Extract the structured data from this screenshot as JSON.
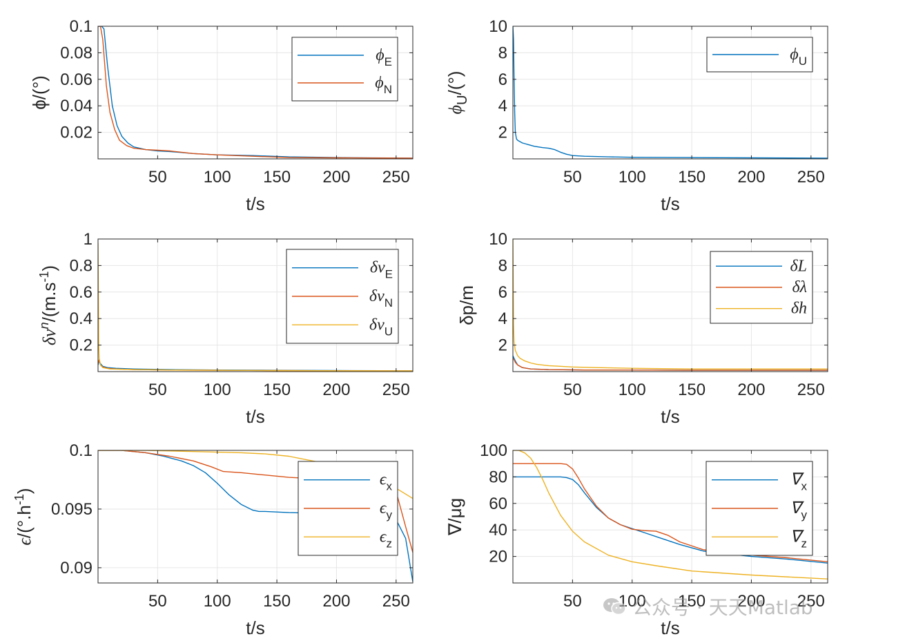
{
  "watermark": {
    "text": "公众号 · 天天Matlab",
    "icon": "wechat-icon"
  },
  "colors": {
    "blue": "#0072BD",
    "orange": "#D95319",
    "yellow": "#EDB120",
    "grid": "#e6e6e6",
    "axis": "#262626"
  },
  "chart_data": [
    {
      "id": "phi-en",
      "type": "line",
      "xlabel": "t/s",
      "ylabel": "ϕ/(°)",
      "xlim": [
        0,
        264
      ],
      "ylim": [
        0,
        0.1
      ],
      "xticks": [
        50,
        100,
        150,
        200,
        250
      ],
      "xtick_labels": [
        "50",
        "100",
        "150",
        "200",
        "250"
      ],
      "yticks": [
        0.02,
        0.04,
        0.06,
        0.08,
        0.1
      ],
      "ytick_labels": [
        "0.02",
        "0.04",
        "0.06",
        "0.08",
        "0.1"
      ],
      "legend_position": "top-right",
      "series": [
        {
          "name": "ϕE",
          "symbol": "ϕ",
          "sub": "E",
          "color": "blue",
          "x": [
            0,
            3,
            5,
            8,
            12,
            16,
            20,
            25,
            30,
            40,
            50,
            60,
            80,
            100,
            130,
            160,
            200,
            264
          ],
          "y": [
            0.1,
            0.1,
            0.098,
            0.07,
            0.04,
            0.025,
            0.017,
            0.012,
            0.009,
            0.007,
            0.006,
            0.0055,
            0.004,
            0.003,
            0.0025,
            0.0015,
            0.001,
            0.0005
          ]
        },
        {
          "name": "ϕN",
          "symbol": "ϕ",
          "sub": "N",
          "color": "orange",
          "x": [
            0,
            2,
            4,
            7,
            10,
            14,
            18,
            24,
            30,
            40,
            50,
            60,
            80,
            100,
            130,
            160,
            200,
            264
          ],
          "y": [
            0.1,
            0.1,
            0.09,
            0.055,
            0.035,
            0.022,
            0.014,
            0.01,
            0.008,
            0.007,
            0.0065,
            0.006,
            0.004,
            0.003,
            0.002,
            0.001,
            0.0008,
            0.0005
          ]
        }
      ]
    },
    {
      "id": "phi-u",
      "type": "line",
      "xlabel": "t/s",
      "ylabel": "ϕU/(°)",
      "ylabel_symbol": "ϕ",
      "ylabel_sub": "U",
      "ylabel_rest": "/(°)",
      "xlim": [
        0,
        264
      ],
      "ylim": [
        0,
        10
      ],
      "xticks": [
        50,
        100,
        150,
        200,
        250
      ],
      "xtick_labels": [
        "50",
        "100",
        "150",
        "200",
        "250"
      ],
      "yticks": [
        2,
        4,
        6,
        8,
        10
      ],
      "ytick_labels": [
        "2",
        "4",
        "6",
        "8",
        "10"
      ],
      "legend_position": "top-right",
      "series": [
        {
          "name": "ϕU",
          "symbol": "ϕ",
          "sub": "U",
          "color": "blue",
          "x": [
            0,
            0.5,
            1,
            1.5,
            2,
            3,
            4,
            5,
            8,
            12,
            18,
            25,
            30,
            35,
            40,
            45,
            50,
            60,
            80,
            100,
            150,
            200,
            264
          ],
          "y": [
            10,
            9,
            6,
            3.5,
            2,
            1.5,
            1.4,
            1.35,
            1.2,
            1.1,
            0.95,
            0.85,
            0.8,
            0.7,
            0.5,
            0.35,
            0.25,
            0.2,
            0.15,
            0.12,
            0.1,
            0.08,
            0.05
          ]
        }
      ]
    },
    {
      "id": "dv",
      "type": "line",
      "xlabel": "t/s",
      "ylabel": "δvn/(m.s-1)",
      "xlim": [
        0,
        264
      ],
      "ylim": [
        0,
        1
      ],
      "xticks": [
        50,
        100,
        150,
        200,
        250
      ],
      "xtick_labels": [
        "50",
        "100",
        "150",
        "200",
        "250"
      ],
      "yticks": [
        0.2,
        0.4,
        0.6,
        0.8,
        1
      ],
      "ytick_labels": [
        "0.2",
        "0.4",
        "0.6",
        "0.8",
        "1"
      ],
      "legend_position": "top-right",
      "series": [
        {
          "name": "δvE",
          "symbol": "δv",
          "sub": "E",
          "color": "blue",
          "x": [
            0,
            1,
            2,
            4,
            8,
            15,
            30,
            60,
            100,
            150,
            200,
            264
          ],
          "y": [
            0.05,
            0.08,
            0.06,
            0.04,
            0.03,
            0.025,
            0.02,
            0.015,
            0.012,
            0.01,
            0.008,
            0.006
          ]
        },
        {
          "name": "δvN",
          "symbol": "δv",
          "sub": "N",
          "color": "orange",
          "x": [
            0,
            1,
            2,
            4,
            8,
            15,
            30,
            60,
            100,
            150,
            200,
            264
          ],
          "y": [
            0.06,
            0.09,
            0.05,
            0.035,
            0.025,
            0.02,
            0.015,
            0.012,
            0.01,
            0.008,
            0.006,
            0.005
          ]
        },
        {
          "name": "δvU",
          "symbol": "δv",
          "sub": "U",
          "color": "yellow",
          "x": [
            0,
            0.3,
            0.6,
            1,
            2,
            4,
            10,
            30,
            60,
            100,
            150,
            200,
            264
          ],
          "y": [
            0.97,
            0.6,
            0.2,
            0.1,
            0.05,
            0.03,
            0.02,
            0.015,
            0.012,
            0.01,
            0.008,
            0.006,
            0.005
          ]
        }
      ]
    },
    {
      "id": "dp",
      "type": "line",
      "xlabel": "t/s",
      "ylabel": "δp/m",
      "xlim": [
        0,
        264
      ],
      "ylim": [
        0,
        10
      ],
      "xticks": [
        50,
        100,
        150,
        200,
        250
      ],
      "xtick_labels": [
        "50",
        "100",
        "150",
        "200",
        "250"
      ],
      "yticks": [
        2,
        4,
        6,
        8,
        10
      ],
      "ytick_labels": [
        "2",
        "4",
        "6",
        "8",
        "10"
      ],
      "legend_position": "top-right",
      "series": [
        {
          "name": "δL",
          "symbol": "δL",
          "sub": "",
          "color": "blue",
          "x": [
            0,
            1,
            2,
            4,
            8,
            15,
            30,
            60,
            100,
            150,
            200,
            264
          ],
          "y": [
            1.2,
            1.0,
            0.8,
            0.5,
            0.3,
            0.2,
            0.15,
            0.12,
            0.12,
            0.1,
            0.1,
            0.1
          ]
        },
        {
          "name": "δλ",
          "symbol": "δλ",
          "sub": "",
          "color": "orange",
          "x": [
            0,
            1,
            2,
            4,
            8,
            15,
            30,
            60,
            100,
            150,
            200,
            264
          ],
          "y": [
            1.0,
            0.9,
            0.7,
            0.5,
            0.3,
            0.2,
            0.15,
            0.12,
            0.12,
            0.1,
            0.1,
            0.1
          ]
        },
        {
          "name": "δh",
          "symbol": "δh",
          "sub": "",
          "color": "yellow",
          "x": [
            0,
            0.5,
            1,
            2,
            4,
            6,
            10,
            15,
            20,
            30,
            40,
            50,
            70,
            100,
            150,
            200,
            264
          ],
          "y": [
            10,
            3.5,
            2.2,
            1.6,
            1.2,
            1.0,
            0.8,
            0.65,
            0.55,
            0.45,
            0.4,
            0.35,
            0.3,
            0.25,
            0.2,
            0.2,
            0.2
          ]
        }
      ]
    },
    {
      "id": "eps",
      "type": "line",
      "xlabel": "t/s",
      "ylabel": "ϵ/(°.h-1)",
      "xlim": [
        0,
        264
      ],
      "ylim": [
        0.0887,
        0.1
      ],
      "xticks": [
        50,
        100,
        150,
        200,
        250
      ],
      "xtick_labels": [
        "50",
        "100",
        "150",
        "200",
        "250"
      ],
      "yticks": [
        0.09,
        0.095,
        0.1
      ],
      "ytick_labels": [
        "0.09",
        "0.095",
        "0.1"
      ],
      "legend_position": "top-right",
      "series": [
        {
          "name": "ϵx",
          "symbol": "ϵ",
          "sub": "x",
          "color": "blue",
          "x": [
            0,
            20,
            40,
            55,
            70,
            80,
            90,
            100,
            110,
            120,
            130,
            135,
            140,
            160,
            200,
            230,
            250,
            258,
            264
          ],
          "y": [
            0.1,
            0.1,
            0.0998,
            0.0995,
            0.0991,
            0.0987,
            0.0981,
            0.0972,
            0.0962,
            0.0954,
            0.0949,
            0.0948,
            0.0948,
            0.0947,
            0.0946,
            0.0944,
            0.0941,
            0.0925,
            0.0888
          ]
        },
        {
          "name": "ϵy",
          "symbol": "ϵ",
          "sub": "y",
          "color": "orange",
          "x": [
            0,
            20,
            40,
            60,
            80,
            95,
            105,
            120,
            140,
            160,
            180,
            200,
            220,
            240,
            250,
            258,
            264
          ],
          "y": [
            0.1,
            0.1,
            0.0998,
            0.0995,
            0.0991,
            0.0986,
            0.0982,
            0.0981,
            0.0979,
            0.0977,
            0.0976,
            0.0975,
            0.0974,
            0.0971,
            0.0965,
            0.0935,
            0.0913
          ]
        },
        {
          "name": "ϵz",
          "symbol": "ϵ",
          "sub": "z",
          "color": "yellow",
          "x": [
            0,
            40,
            80,
            120,
            140,
            160,
            170,
            180,
            190,
            200,
            220,
            240,
            264
          ],
          "y": [
            0.1,
            0.1,
            0.0999,
            0.0998,
            0.0997,
            0.0995,
            0.0993,
            0.0991,
            0.0989,
            0.0987,
            0.0982,
            0.0974,
            0.0959
          ]
        }
      ]
    },
    {
      "id": "grad",
      "type": "line",
      "xlabel": "t/s",
      "ylabel": "∇/μg",
      "xlim": [
        0,
        264
      ],
      "ylim": [
        0,
        100
      ],
      "xticks": [
        50,
        100,
        150,
        200,
        250
      ],
      "xtick_labels": [
        "50",
        "100",
        "150",
        "200",
        "250"
      ],
      "yticks": [
        20,
        40,
        60,
        80,
        100
      ],
      "ytick_labels": [
        "20",
        "40",
        "60",
        "80",
        "100"
      ],
      "legend_position": "top-right",
      "series": [
        {
          "name": "∇x",
          "symbol": "∇",
          "sub": "x",
          "color": "blue",
          "x": [
            0,
            20,
            40,
            45,
            50,
            55,
            60,
            70,
            80,
            90,
            100,
            110,
            120,
            140,
            160,
            180,
            200,
            230,
            264
          ],
          "y": [
            80,
            80,
            80,
            79.5,
            78,
            74,
            68,
            57,
            49,
            44,
            41,
            38,
            35,
            29,
            24,
            22,
            20,
            18,
            15
          ]
        },
        {
          "name": "∇y",
          "symbol": "∇",
          "sub": "y",
          "color": "orange",
          "x": [
            0,
            20,
            40,
            45,
            50,
            55,
            60,
            70,
            80,
            90,
            100,
            110,
            120,
            130,
            140,
            160,
            180,
            200,
            230,
            264
          ],
          "y": [
            90,
            90,
            90,
            89.5,
            86,
            79,
            71,
            58,
            49,
            44,
            40.5,
            39.5,
            39,
            36,
            31,
            25,
            23,
            21,
            19,
            16
          ]
        },
        {
          "name": "∇z",
          "symbol": "∇",
          "sub": "z",
          "color": "yellow",
          "x": [
            0,
            5,
            10,
            15,
            20,
            25,
            30,
            40,
            50,
            60,
            80,
            100,
            120,
            150,
            200,
            264
          ],
          "y": [
            100,
            100,
            98,
            94,
            87,
            78,
            68,
            51,
            39,
            31,
            21,
            16,
            13,
            9,
            6,
            3
          ]
        }
      ]
    }
  ]
}
